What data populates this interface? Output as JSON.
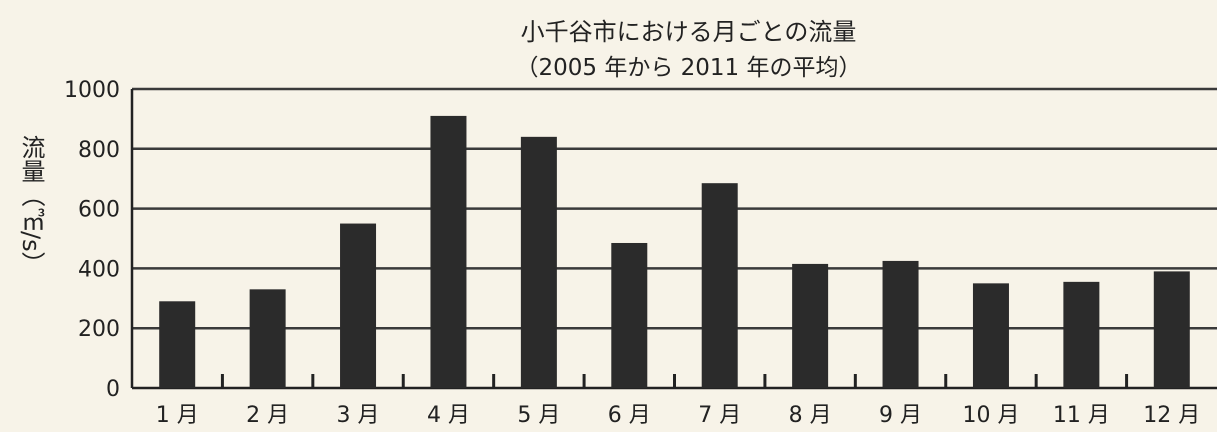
{
  "chart_data": {
    "type": "bar",
    "title": "小千谷市における月ごとの流量",
    "subtitle": "（2005 年から 2011 年の平均）",
    "ylabel": "流量（㎥/s）",
    "xlabel": "",
    "ylim": [
      0,
      1000
    ],
    "yticks": [
      0,
      200,
      400,
      600,
      800,
      1000
    ],
    "grid": true,
    "categories": [
      "1 月",
      "2 月",
      "3 月",
      "4 月",
      "5 月",
      "6 月",
      "7 月",
      "8 月",
      "9 月",
      "10 月",
      "11 月",
      "12 月"
    ],
    "values": [
      290,
      330,
      550,
      910,
      840,
      485,
      685,
      415,
      425,
      350,
      355,
      390
    ],
    "bar_color": "#2b2b2b",
    "grid_color": "#3a3a3a"
  }
}
